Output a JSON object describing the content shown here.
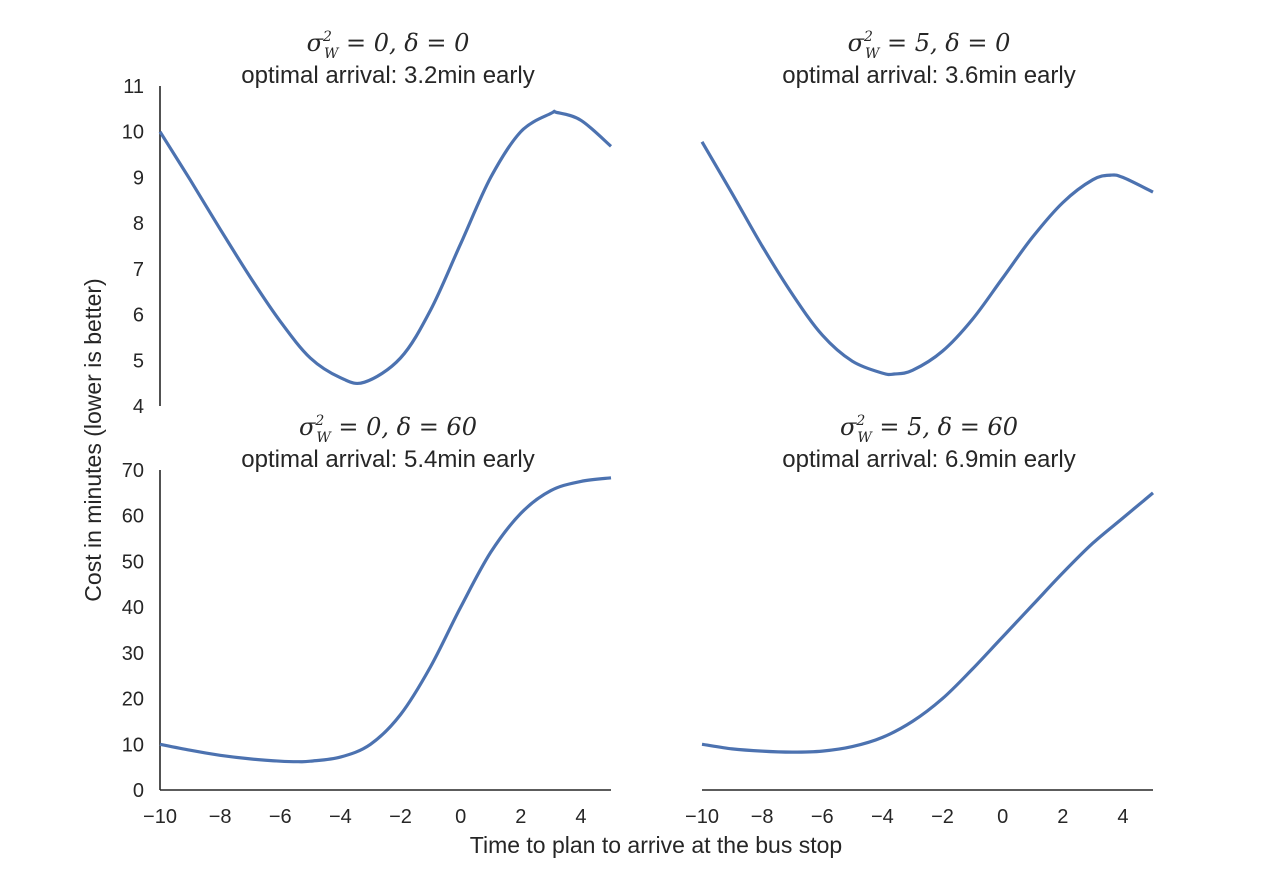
{
  "colors": {
    "line": "#4c72b0",
    "text": "#262626"
  },
  "figure": {
    "xlabel": "Time to plan to arrive at the bus stop",
    "ylabel": "Cost in minutes (lower is better)"
  },
  "chart_data": [
    {
      "type": "line",
      "math_title": {
        "sigma": "σ",
        "sup": "2",
        "sub": "W",
        "rest": " = 0, δ = 0"
      },
      "title": "optimal arrival: 3.2min early",
      "xlim": [
        -10,
        5
      ],
      "ylim": [
        4,
        11
      ],
      "xticks": [],
      "yticks": [
        "4",
        "5",
        "6",
        "7",
        "8",
        "9",
        "10",
        "11"
      ],
      "grid": false,
      "x": [
        -10,
        -9,
        -8,
        -7,
        -6,
        -5,
        -4,
        -3.2,
        -2,
        -1,
        0,
        1,
        2,
        3,
        3.2,
        4,
        5
      ],
      "y": [
        10.0,
        8.95,
        7.87,
        6.82,
        5.85,
        5.05,
        4.62,
        4.52,
        5.05,
        6.1,
        7.55,
        9.0,
        10.0,
        10.4,
        10.42,
        10.25,
        9.68
      ]
    },
    {
      "type": "line",
      "math_title": {
        "sigma": "σ",
        "sup": "2",
        "sub": "W",
        "rest": " = 5, δ = 0"
      },
      "title": "optimal arrival: 3.6min early",
      "xlim": [
        -10,
        5
      ],
      "ylim": [
        4,
        11
      ],
      "xticks": [],
      "yticks": [],
      "grid": false,
      "x": [
        -10,
        -9,
        -8,
        -7,
        -6,
        -5,
        -4,
        -3.6,
        -3,
        -2,
        -1,
        0,
        1,
        2,
        3,
        3.6,
        4,
        5
      ],
      "y": [
        9.78,
        8.65,
        7.5,
        6.45,
        5.55,
        4.98,
        4.72,
        4.7,
        4.78,
        5.2,
        5.9,
        6.8,
        7.7,
        8.45,
        8.95,
        9.05,
        9.0,
        8.68
      ]
    },
    {
      "type": "line",
      "math_title": {
        "sigma": "σ",
        "sup": "2",
        "sub": "W",
        "rest": " = 0, δ = 60"
      },
      "title": "optimal arrival: 5.4min early",
      "xlim": [
        -10,
        5
      ],
      "ylim": [
        0,
        70
      ],
      "xticks": [
        "−10",
        "−8",
        "−6",
        "−4",
        "−2",
        "0",
        "2",
        "4"
      ],
      "yticks": [
        "0",
        "10",
        "20",
        "30",
        "40",
        "50",
        "60",
        "70"
      ],
      "grid": false,
      "x": [
        -10,
        -9,
        -8,
        -7,
        -6,
        -5.4,
        -5,
        -4,
        -3,
        -2,
        -1,
        0,
        1,
        2,
        3,
        4,
        5
      ],
      "y": [
        10.0,
        8.7,
        7.6,
        6.8,
        6.3,
        6.2,
        6.3,
        7.2,
        10.0,
        16.5,
        27.0,
        40.0,
        52.0,
        60.5,
        65.5,
        67.5,
        68.3
      ]
    },
    {
      "type": "line",
      "math_title": {
        "sigma": "σ",
        "sup": "2",
        "sub": "W",
        "rest": " = 5, δ = 60"
      },
      "title": "optimal arrival: 6.9min early",
      "xlim": [
        -10,
        5
      ],
      "ylim": [
        0,
        70
      ],
      "xticks": [
        "−10",
        "−8",
        "−6",
        "−4",
        "−2",
        "0",
        "2",
        "4"
      ],
      "yticks": [],
      "grid": false,
      "x": [
        -10,
        -9,
        -8,
        -7,
        -6,
        -5,
        -4,
        -3,
        -2,
        -1,
        0,
        1,
        2,
        3,
        4,
        5
      ],
      "y": [
        10.0,
        9.0,
        8.5,
        8.3,
        8.5,
        9.5,
        11.5,
        15.0,
        20.0,
        26.5,
        33.5,
        40.5,
        47.5,
        54.0,
        59.5,
        65.0
      ]
    }
  ]
}
